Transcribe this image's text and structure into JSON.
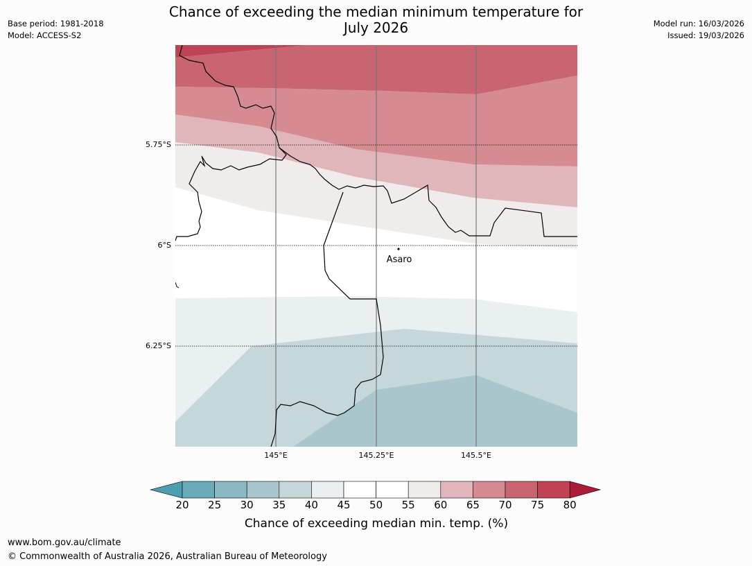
{
  "title": {
    "line1": "Chance of exceeding the median minimum temperature for",
    "line2": "July 2026"
  },
  "meta_left": {
    "base_period": "Base period: 1981-2018",
    "model": "Model: ACCESS-S2"
  },
  "meta_right": {
    "model_run": "Model run: 16/03/2026",
    "issued": "Issued: 19/03/2026"
  },
  "map": {
    "lat_labels": [
      "5.75°S",
      "6°S",
      "6.25°S"
    ],
    "lon_labels": [
      "145°E",
      "145.25°E",
      "145.5°E"
    ],
    "place": {
      "name": "Asaro"
    }
  },
  "colorbar": {
    "ticks": [
      "20",
      "25",
      "30",
      "35",
      "40",
      "45",
      "50",
      "55",
      "60",
      "65",
      "70",
      "75",
      "80"
    ],
    "colors": [
      "#6aaab9",
      "#8ab8c3",
      "#a9c6cc",
      "#c6d7db",
      "#eaeff1",
      "#ffffff",
      "#ffffff",
      "#efecea",
      "#e1b6bb",
      "#d68b93",
      "#c96571",
      "#bf4352"
    ],
    "under_color": "#4b9daf",
    "over_color": "#ab1a36",
    "label": "Chance of exceeding median min. temp. (%)"
  },
  "footer": {
    "url": "www.bom.gov.au/climate",
    "copyright": "© Commonwealth of Australia 2026, Australian Bureau of Meteorology"
  }
}
